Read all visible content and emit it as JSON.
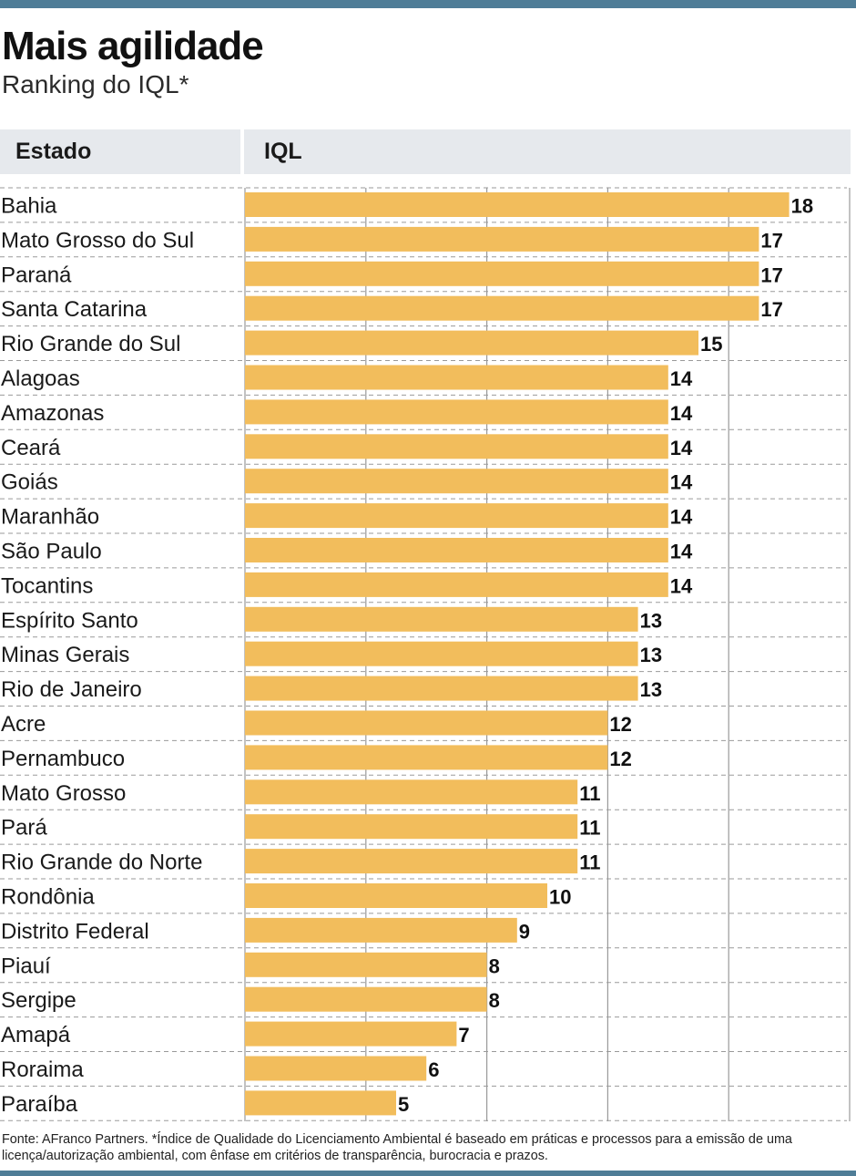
{
  "header": {
    "title": "Mais agilidade",
    "subtitle": "Ranking do IQL*",
    "col_estado": "Estado",
    "col_iql": "IQL"
  },
  "footer": {
    "source": "Fonte: AFranco Partners. *Índice de Qualidade do Licenciamento Ambiental é baseado em práticas e processos para a emissão de uma licença/autorização ambiental, com ênfase em critérios de transparência, burocracia e prazos."
  },
  "colors": {
    "bar": "#f2bd5c",
    "accent_rule": "#4f7d97",
    "header_bg": "#e6e9ed",
    "grid": "#9a9a9a"
  },
  "chart_data": {
    "type": "bar",
    "orientation": "horizontal",
    "xlim": [
      0,
      20
    ],
    "grid": true,
    "categories": [
      "Bahia",
      "Mato Grosso do Sul",
      "Paraná",
      "Santa Catarina",
      "Rio Grande do Sul",
      "Alagoas",
      "Amazonas",
      "Ceará",
      "Goiás",
      "Maranhão",
      "São Paulo",
      "Tocantins",
      "Espírito Santo",
      "Minas Gerais",
      "Rio de Janeiro",
      "Acre",
      "Pernambuco",
      "Mato Grosso",
      "Pará",
      "Rio Grande do Norte",
      "Rondônia",
      "Distrito Federal",
      "Piauí",
      "Sergipe",
      "Amapá",
      "Roraima",
      "Paraíba"
    ],
    "values": [
      18,
      17,
      17,
      17,
      15,
      14,
      14,
      14,
      14,
      14,
      14,
      14,
      13,
      13,
      13,
      12,
      12,
      11,
      11,
      11,
      10,
      9,
      8,
      8,
      7,
      6,
      5
    ]
  }
}
